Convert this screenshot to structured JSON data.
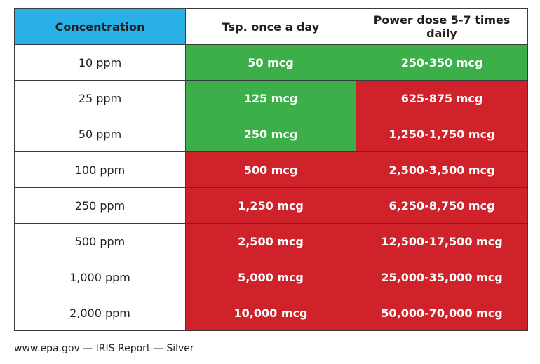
{
  "table": {
    "header": [
      "Concentration",
      "Tsp. once a day",
      "Power dose 5-7 times daily"
    ],
    "rows": [
      [
        "10 ppm",
        "50 mcg",
        "250-350 mcg"
      ],
      [
        "25 ppm",
        "125 mcg",
        "625-875 mcg"
      ],
      [
        "50 ppm",
        "250 mcg",
        "1,250-1,750 mcg"
      ],
      [
        "100 ppm",
        "500 mcg",
        "2,500-3,500 mcg"
      ],
      [
        "250 ppm",
        "1,250 mcg",
        "6,250-8,750 mcg"
      ],
      [
        "500 ppm",
        "2,500 mcg",
        "12,500-17,500 mcg"
      ],
      [
        "1,000 ppm",
        "5,000 mcg",
        "25,000-35,000 mcg"
      ],
      [
        "2,000 ppm",
        "10,000 mcg",
        "50,000-70,000 mcg"
      ]
    ]
  },
  "footer": "www.epa.gov — IRIS Report — Silver"
}
